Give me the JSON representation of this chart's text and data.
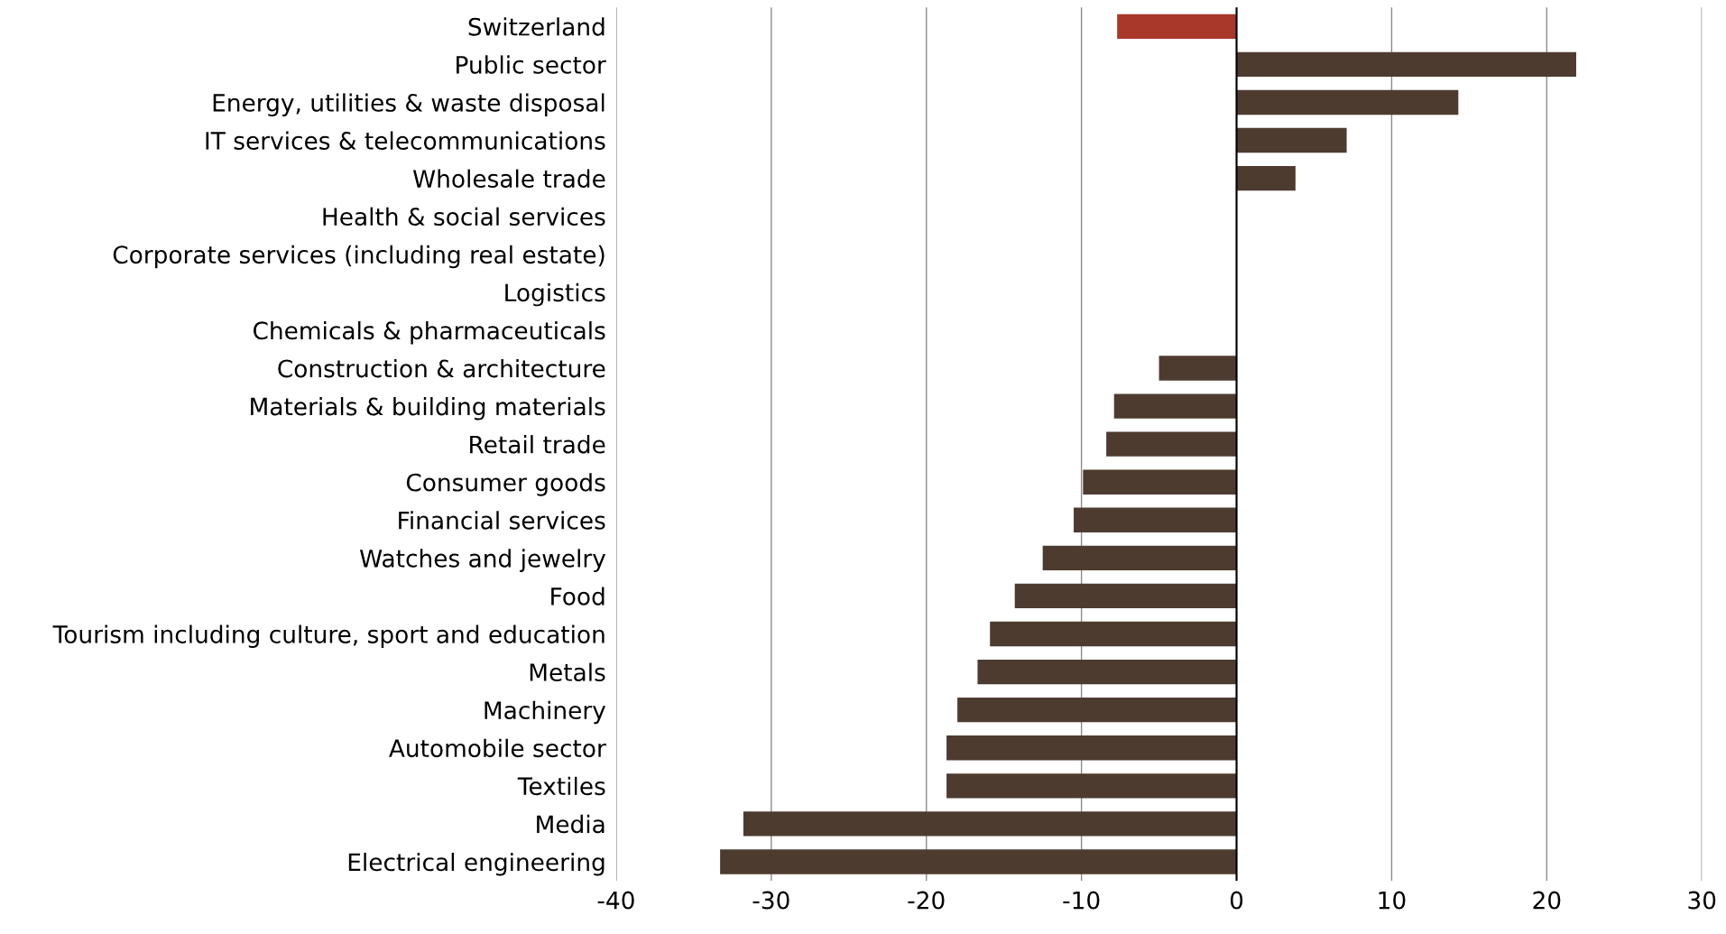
{
  "chart_data": {
    "type": "bar",
    "orientation": "horizontal",
    "categories": [
      "Switzerland",
      "Public sector",
      "Energy, utilities & waste disposal",
      "IT services & telecommunications",
      "Wholesale trade",
      "Health & social services",
      "Corporate services (including real estate)",
      "Logistics",
      "Chemicals & pharmaceuticals",
      "Construction & architecture",
      "Materials & building materials",
      "Retail trade",
      "Consumer goods",
      "Financial services",
      "Watches and jewelry",
      "Food",
      "Tourism including culture, sport and education",
      "Metals",
      "Machinery",
      "Automobile sector",
      "Textiles",
      "Media",
      "Electrical engineering"
    ],
    "values": [
      -7.7,
      21.9,
      14.3,
      7.1,
      3.8,
      0,
      0,
      0,
      0,
      -5.0,
      -7.9,
      -8.4,
      -9.9,
      -10.5,
      -12.5,
      -14.3,
      -15.9,
      -16.7,
      -18.0,
      -18.7,
      -18.7,
      -31.8,
      -33.3
    ],
    "colors": [
      "#a9382a",
      "#4e3b30",
      "#4e3b30",
      "#4e3b30",
      "#4e3b30",
      "#4e3b30",
      "#4e3b30",
      "#4e3b30",
      "#4e3b30",
      "#4e3b30",
      "#4e3b30",
      "#4e3b30",
      "#4e3b30",
      "#4e3b30",
      "#4e3b30",
      "#4e3b30",
      "#4e3b30",
      "#4e3b30",
      "#4e3b30",
      "#4e3b30",
      "#4e3b30",
      "#4e3b30",
      "#4e3b30"
    ],
    "xlim": [
      -40,
      30
    ],
    "xticks": [
      -40,
      -30,
      -20,
      -10,
      0,
      10,
      20,
      30
    ],
    "grid": "x"
  }
}
